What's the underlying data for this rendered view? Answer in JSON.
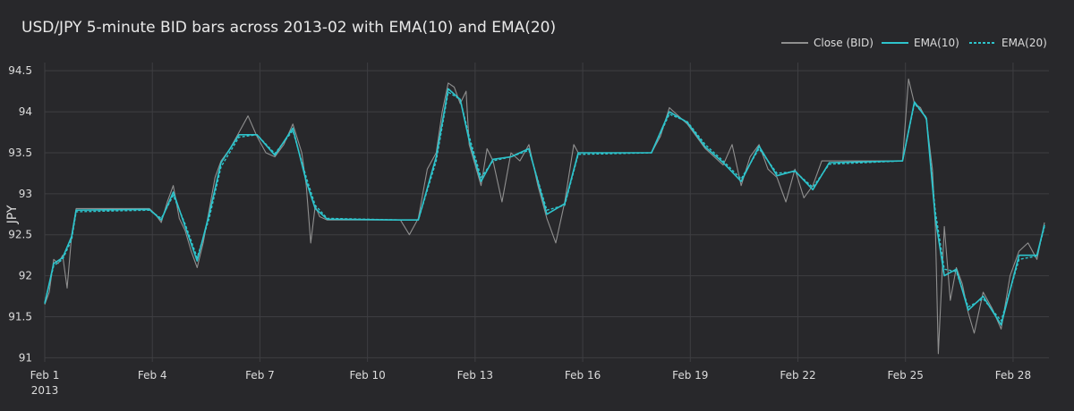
{
  "title": "USD/JPY 5-minute BID bars across 2013-02 with EMA(10) and EMA(20)",
  "colors": {
    "close": "#8f8f8f",
    "ema10": "#2ec4cc",
    "ema20": "#2ec4cc",
    "grid": "#3e3e42"
  },
  "chart_data": {
    "type": "line",
    "title": "USD/JPY 5-minute BID bars across 2013-02 with EMA(10) and EMA(20)",
    "xlabel": "",
    "ylabel": "JPY",
    "ylim": [
      90.95,
      94.6
    ],
    "xlim": [
      "2013-02-01",
      "2013-03-01"
    ],
    "y_ticks": [
      91,
      91.5,
      92,
      92.5,
      93,
      93.5,
      94,
      94.5
    ],
    "x_ticks": [
      {
        "date": "2013-02-01",
        "label": "Feb 1",
        "sub": "2013"
      },
      {
        "date": "2013-02-04",
        "label": "Feb 4",
        "sub": ""
      },
      {
        "date": "2013-02-07",
        "label": "Feb 7",
        "sub": ""
      },
      {
        "date": "2013-02-10",
        "label": "Feb 10",
        "sub": ""
      },
      {
        "date": "2013-02-13",
        "label": "Feb 13",
        "sub": ""
      },
      {
        "date": "2013-02-16",
        "label": "Feb 16",
        "sub": ""
      },
      {
        "date": "2013-02-19",
        "label": "Feb 19",
        "sub": ""
      },
      {
        "date": "2013-02-22",
        "label": "Feb 22",
        "sub": ""
      },
      {
        "date": "2013-02-25",
        "label": "Feb 25",
        "sub": ""
      },
      {
        "date": "2013-02-28",
        "label": "Feb 28",
        "sub": ""
      }
    ],
    "grid": true,
    "legend_position": "top-right",
    "series": [
      {
        "name": "Close (BID)",
        "x": [
          "2013-02-01 00:00",
          "2013-02-01 03:00",
          "2013-02-01 06:00",
          "2013-02-01 09:00",
          "2013-02-01 12:00",
          "2013-02-01 15:00",
          "2013-02-01 18:00",
          "2013-02-01 21:00",
          "2013-02-03 22:00",
          "2013-02-04 02:00",
          "2013-02-04 06:00",
          "2013-02-04 10:00",
          "2013-02-04 14:00",
          "2013-02-04 18:00",
          "2013-02-04 22:00",
          "2013-02-05 02:00",
          "2013-02-05 06:00",
          "2013-02-05 10:00",
          "2013-02-05 14:00",
          "2013-02-05 18:00",
          "2013-02-05 22:00",
          "2013-02-06 04:00",
          "2013-02-06 10:00",
          "2013-02-06 16:00",
          "2013-02-06 22:00",
          "2013-02-07 04:00",
          "2013-02-07 10:00",
          "2013-02-07 16:00",
          "2013-02-07 22:00",
          "2013-02-08 04:00",
          "2013-02-08 07:00",
          "2013-02-08 10:00",
          "2013-02-08 13:00",
          "2013-02-08 16:00",
          "2013-02-08 21:00",
          "2013-02-10 22:00",
          "2013-02-11 04:00",
          "2013-02-11 10:00",
          "2013-02-11 16:00",
          "2013-02-11 22:00",
          "2013-02-12 02:00",
          "2013-02-12 06:00",
          "2013-02-12 10:00",
          "2013-02-12 14:00",
          "2013-02-12 18:00",
          "2013-02-12 20:00",
          "2013-02-13 00:00",
          "2013-02-13 04:00",
          "2013-02-13 08:00",
          "2013-02-13 12:00",
          "2013-02-13 18:00",
          "2013-02-14 00:00",
          "2013-02-14 06:00",
          "2013-02-14 12:00",
          "2013-02-14 18:00",
          "2013-02-15 00:00",
          "2013-02-15 06:00",
          "2013-02-15 12:00",
          "2013-02-15 18:00",
          "2013-02-15 21:00",
          "2013-02-17 22:00",
          "2013-02-18 04:00",
          "2013-02-18 10:00",
          "2013-02-18 16:00",
          "2013-02-18 22:00",
          "2013-02-19 04:00",
          "2013-02-19 10:00",
          "2013-02-19 16:00",
          "2013-02-19 22:00",
          "2013-02-20 04:00",
          "2013-02-20 10:00",
          "2013-02-20 16:00",
          "2013-02-20 22:00",
          "2013-02-21 04:00",
          "2013-02-21 10:00",
          "2013-02-21 16:00",
          "2013-02-21 22:00",
          "2013-02-22 04:00",
          "2013-02-22 10:00",
          "2013-02-22 16:00",
          "2013-02-22 21:00",
          "2013-02-24 22:00",
          "2013-02-25 02:00",
          "2013-02-25 06:00",
          "2013-02-25 10:00",
          "2013-02-25 14:00",
          "2013-02-25 18:00",
          "2013-02-25 20:00",
          "2013-02-25 22:00",
          "2013-02-26 02:00",
          "2013-02-26 06:00",
          "2013-02-26 10:00",
          "2013-02-26 14:00",
          "2013-02-26 18:00",
          "2013-02-26 22:00",
          "2013-02-27 04:00",
          "2013-02-27 10:00",
          "2013-02-27 16:00",
          "2013-02-27 22:00",
          "2013-02-28 04:00",
          "2013-02-28 10:00",
          "2013-02-28 16:00",
          "2013-02-28 21:00"
        ],
        "y": [
          91.65,
          91.8,
          92.2,
          92.15,
          92.25,
          91.85,
          92.5,
          92.82,
          92.82,
          92.75,
          92.65,
          92.9,
          93.1,
          92.7,
          92.55,
          92.3,
          92.1,
          92.4,
          92.8,
          93.2,
          93.4,
          93.55,
          93.75,
          93.95,
          93.7,
          93.5,
          93.45,
          93.6,
          93.85,
          93.5,
          93.1,
          92.4,
          92.85,
          92.72,
          92.68,
          92.68,
          92.5,
          92.7,
          93.3,
          93.5,
          94.0,
          94.35,
          94.3,
          94.1,
          94.25,
          93.6,
          93.35,
          93.1,
          93.55,
          93.4,
          92.9,
          93.5,
          93.4,
          93.6,
          93.1,
          92.7,
          92.4,
          92.9,
          93.6,
          93.5,
          93.5,
          93.7,
          94.05,
          93.95,
          93.85,
          93.7,
          93.55,
          93.45,
          93.35,
          93.6,
          93.1,
          93.45,
          93.6,
          93.3,
          93.2,
          92.9,
          93.3,
          92.95,
          93.1,
          93.4,
          93.4,
          93.4,
          94.4,
          94.1,
          94.05,
          93.9,
          93.3,
          92.6,
          91.05,
          92.6,
          91.7,
          92.1,
          91.9,
          91.55,
          91.3,
          91.8,
          91.6,
          91.35,
          92.0,
          92.3,
          92.4,
          92.2,
          92.65
        ]
      },
      {
        "name": "EMA(10)",
        "x": [
          "2013-02-01 00:00",
          "2013-02-01 06:00",
          "2013-02-01 12:00",
          "2013-02-01 18:00",
          "2013-02-01 21:00",
          "2013-02-03 22:00",
          "2013-02-04 06:00",
          "2013-02-04 14:00",
          "2013-02-04 22:00",
          "2013-02-05 06:00",
          "2013-02-05 14:00",
          "2013-02-05 22:00",
          "2013-02-06 10:00",
          "2013-02-06 22:00",
          "2013-02-07 10:00",
          "2013-02-07 22:00",
          "2013-02-08 07:00",
          "2013-02-08 13:00",
          "2013-02-08 21:00",
          "2013-02-10 22:00",
          "2013-02-11 10:00",
          "2013-02-11 22:00",
          "2013-02-12 06:00",
          "2013-02-12 14:00",
          "2013-02-12 20:00",
          "2013-02-13 04:00",
          "2013-02-13 12:00",
          "2013-02-14 00:00",
          "2013-02-14 12:00",
          "2013-02-15 00:00",
          "2013-02-15 12:00",
          "2013-02-15 21:00",
          "2013-02-17 22:00",
          "2013-02-18 10:00",
          "2013-02-18 22:00",
          "2013-02-19 10:00",
          "2013-02-19 22:00",
          "2013-02-20 10:00",
          "2013-02-20 22:00",
          "2013-02-21 10:00",
          "2013-02-21 22:00",
          "2013-02-22 10:00",
          "2013-02-22 21:00",
          "2013-02-24 22:00",
          "2013-02-25 06:00",
          "2013-02-25 14:00",
          "2013-02-25 20:00",
          "2013-02-26 02:00",
          "2013-02-26 10:00",
          "2013-02-26 18:00",
          "2013-02-27 04:00",
          "2013-02-27 16:00",
          "2013-02-28 04:00",
          "2013-02-28 16:00",
          "2013-02-28 21:00"
        ],
        "y": [
          91.66,
          92.15,
          92.22,
          92.48,
          92.8,
          92.81,
          92.68,
          93.02,
          92.6,
          92.18,
          92.75,
          93.38,
          93.72,
          93.72,
          93.47,
          93.8,
          93.15,
          92.82,
          92.69,
          92.68,
          92.68,
          93.45,
          94.28,
          94.15,
          93.65,
          93.15,
          93.42,
          93.45,
          93.55,
          92.75,
          92.88,
          93.5,
          93.5,
          94.0,
          93.87,
          93.57,
          93.38,
          93.15,
          93.58,
          93.22,
          93.28,
          93.05,
          93.38,
          93.4,
          94.12,
          93.92,
          92.7,
          92.0,
          92.08,
          91.58,
          91.75,
          91.4,
          92.25,
          92.25,
          92.62
        ]
      },
      {
        "name": "EMA(20)",
        "x": [
          "2013-02-01 00:00",
          "2013-02-01 06:00",
          "2013-02-01 12:00",
          "2013-02-01 18:00",
          "2013-02-01 21:00",
          "2013-02-03 22:00",
          "2013-02-04 06:00",
          "2013-02-04 14:00",
          "2013-02-04 22:00",
          "2013-02-05 06:00",
          "2013-02-05 14:00",
          "2013-02-05 22:00",
          "2013-02-06 10:00",
          "2013-02-06 22:00",
          "2013-02-07 10:00",
          "2013-02-07 22:00",
          "2013-02-08 07:00",
          "2013-02-08 13:00",
          "2013-02-08 21:00",
          "2013-02-10 22:00",
          "2013-02-11 10:00",
          "2013-02-11 22:00",
          "2013-02-12 06:00",
          "2013-02-12 14:00",
          "2013-02-12 20:00",
          "2013-02-13 04:00",
          "2013-02-13 12:00",
          "2013-02-14 00:00",
          "2013-02-14 12:00",
          "2013-02-15 00:00",
          "2013-02-15 12:00",
          "2013-02-15 21:00",
          "2013-02-17 22:00",
          "2013-02-18 10:00",
          "2013-02-18 22:00",
          "2013-02-19 10:00",
          "2013-02-19 22:00",
          "2013-02-20 10:00",
          "2013-02-20 22:00",
          "2013-02-21 10:00",
          "2013-02-21 22:00",
          "2013-02-22 10:00",
          "2013-02-22 21:00",
          "2013-02-24 22:00",
          "2013-02-25 06:00",
          "2013-02-25 14:00",
          "2013-02-25 20:00",
          "2013-02-26 02:00",
          "2013-02-26 10:00",
          "2013-02-26 18:00",
          "2013-02-27 04:00",
          "2013-02-27 16:00",
          "2013-02-28 04:00",
          "2013-02-28 16:00",
          "2013-02-28 21:00"
        ],
        "y": [
          91.67,
          92.12,
          92.2,
          92.44,
          92.78,
          92.8,
          92.7,
          92.98,
          92.63,
          92.22,
          92.7,
          93.33,
          93.69,
          93.72,
          93.49,
          93.77,
          93.2,
          92.86,
          92.7,
          92.68,
          92.68,
          93.4,
          94.24,
          94.15,
          93.7,
          93.2,
          93.4,
          93.45,
          93.53,
          92.8,
          92.86,
          93.48,
          93.5,
          93.97,
          93.88,
          93.6,
          93.4,
          93.18,
          93.55,
          93.25,
          93.27,
          93.08,
          93.36,
          93.4,
          94.1,
          93.93,
          92.78,
          92.08,
          92.05,
          91.62,
          91.72,
          91.45,
          92.2,
          92.24,
          92.6
        ]
      }
    ]
  }
}
